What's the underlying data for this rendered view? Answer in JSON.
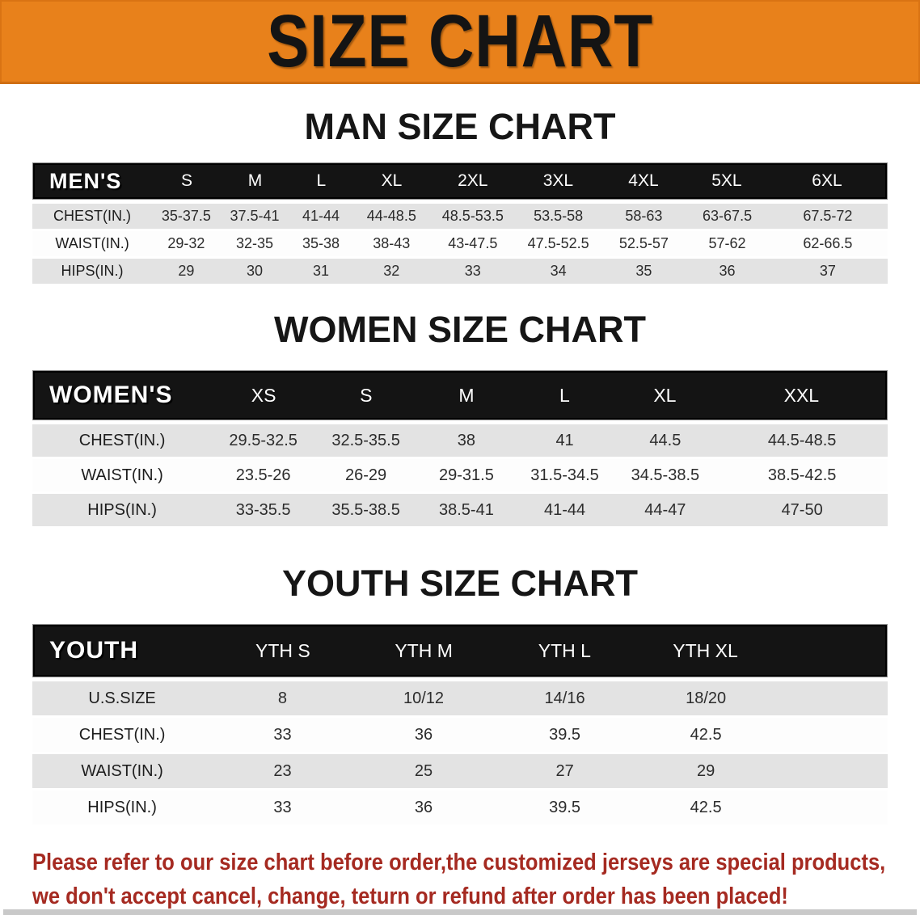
{
  "banner": {
    "title": "SIZE CHART",
    "bg_color": "#E8811B",
    "text_color": "#141414"
  },
  "sections": [
    {
      "heading": "MAN SIZE CHART",
      "table": {
        "header_label": "MEN'S",
        "columns": [
          "S",
          "M",
          "L",
          "XL",
          "2XL",
          "3XL",
          "4XL",
          "5XL",
          "6XL"
        ],
        "rows": [
          {
            "label": "CHEST(IN.)",
            "values": [
              "35-37.5",
              "37.5-41",
              "41-44",
              "44-48.5",
              "48.5-53.5",
              "53.5-58",
              "58-63",
              "63-67.5",
              "67.5-72"
            ]
          },
          {
            "label": "WAIST(IN.)",
            "values": [
              "29-32",
              "32-35",
              "35-38",
              "38-43",
              "43-47.5",
              "47.5-52.5",
              "52.5-57",
              "57-62",
              "62-66.5"
            ]
          },
          {
            "label": "HIPS(IN.)",
            "values": [
              "29",
              "30",
              "31",
              "32",
              "33",
              "34",
              "35",
              "36",
              "37"
            ]
          }
        ]
      }
    },
    {
      "heading": "WOMEN SIZE CHART",
      "table": {
        "header_label": "WOMEN'S",
        "columns": [
          "XS",
          "S",
          "M",
          "L",
          "XL",
          "XXL"
        ],
        "rows": [
          {
            "label": "CHEST(IN.)",
            "values": [
              "29.5-32.5",
              "32.5-35.5",
              "38",
              "41",
              "44.5",
              "44.5-48.5"
            ]
          },
          {
            "label": "WAIST(IN.)",
            "values": [
              "23.5-26",
              "26-29",
              "29-31.5",
              "31.5-34.5",
              "34.5-38.5",
              "38.5-42.5"
            ]
          },
          {
            "label": "HIPS(IN.)",
            "values": [
              "33-35.5",
              "35.5-38.5",
              "38.5-41",
              "41-44",
              "44-47",
              "47-50"
            ]
          }
        ]
      }
    },
    {
      "heading": "YOUTH SIZE CHART",
      "table": {
        "header_label": "YOUTH",
        "columns": [
          "YTH S",
          "YTH M",
          "YTH L",
          "YTH XL"
        ],
        "rows": [
          {
            "label": "U.S.SIZE",
            "values": [
              "8",
              "10/12",
              "14/16",
              "18/20"
            ]
          },
          {
            "label": "CHEST(IN.)",
            "values": [
              "33",
              "36",
              "39.5",
              "42.5"
            ]
          },
          {
            "label": "WAIST(IN.)",
            "values": [
              "23",
              "25",
              "27",
              "29"
            ]
          },
          {
            "label": "HIPS(IN.)",
            "values": [
              "33",
              "36",
              "39.5",
              "42.5"
            ]
          }
        ]
      }
    }
  ],
  "footer_note": {
    "line1": "Please refer to our size chart before order,the customized jerseys are special products,",
    "line2": "we don't accept cancel, change, teturn or refund after order has been placed!",
    "color": "#A52A21"
  },
  "style_colors": {
    "table_header_bg": "#141414",
    "row_gray": "#e3e3e3",
    "row_white": "#fdfdfd"
  }
}
